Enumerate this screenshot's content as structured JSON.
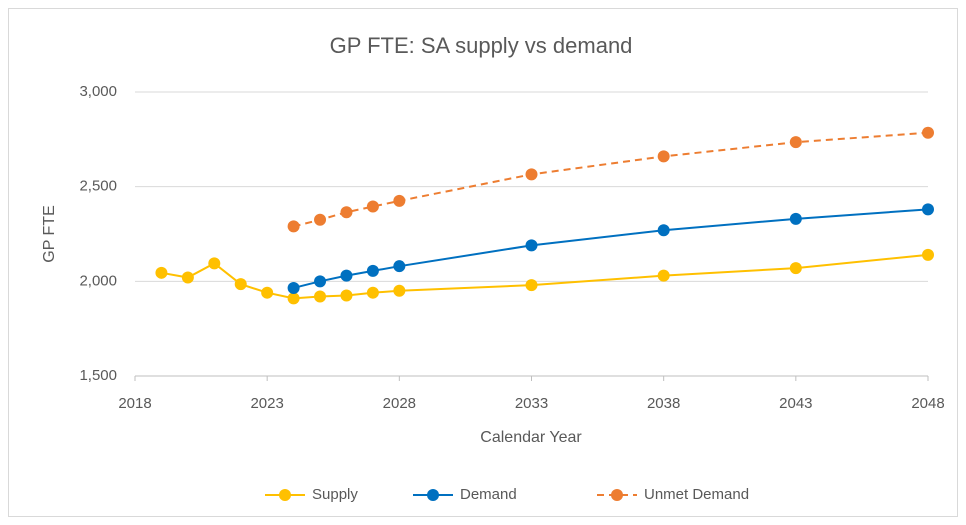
{
  "chart_data": {
    "type": "line",
    "title": "GP FTE: SA supply vs demand",
    "x_label": "Calendar Year",
    "y_label": "GP FTE",
    "xlim": [
      2018,
      2048
    ],
    "xticks": [
      2018,
      2023,
      2028,
      2033,
      2038,
      2043,
      2048
    ],
    "ylim": [
      1500,
      3000
    ],
    "yticks": [
      {
        "value": 1500,
        "label": "1,500"
      },
      {
        "value": 2000,
        "label": "2,000"
      },
      {
        "value": 2500,
        "label": "2,500"
      },
      {
        "value": 3000,
        "label": "3,000"
      }
    ],
    "grid": true,
    "legend": "bottom",
    "series": [
      {
        "name": "Supply",
        "color": "#FFC000",
        "linestyle": "solid",
        "x": [
          2019,
          2020,
          2021,
          2022,
          2023,
          2024,
          2025,
          2026,
          2027,
          2028,
          2033,
          2038,
          2043,
          2048
        ],
        "values": [
          2045,
          2020,
          2095,
          1985,
          1940,
          1910,
          1920,
          1925,
          1940,
          1950,
          1980,
          2030,
          2070,
          2140
        ]
      },
      {
        "name": "Demand",
        "color": "#0070C0",
        "linestyle": "solid",
        "x": [
          2024,
          2025,
          2026,
          2027,
          2028,
          2033,
          2038,
          2043,
          2048
        ],
        "values": [
          1965,
          2000,
          2030,
          2055,
          2080,
          2190,
          2270,
          2330,
          2380
        ]
      },
      {
        "name": "Unmet Demand",
        "color": "#ED7D31",
        "linestyle": "dashed",
        "x": [
          2024,
          2025,
          2026,
          2027,
          2028,
          2033,
          2038,
          2043,
          2048
        ],
        "values": [
          2290,
          2325,
          2365,
          2395,
          2425,
          2565,
          2660,
          2735,
          2785
        ]
      }
    ]
  }
}
